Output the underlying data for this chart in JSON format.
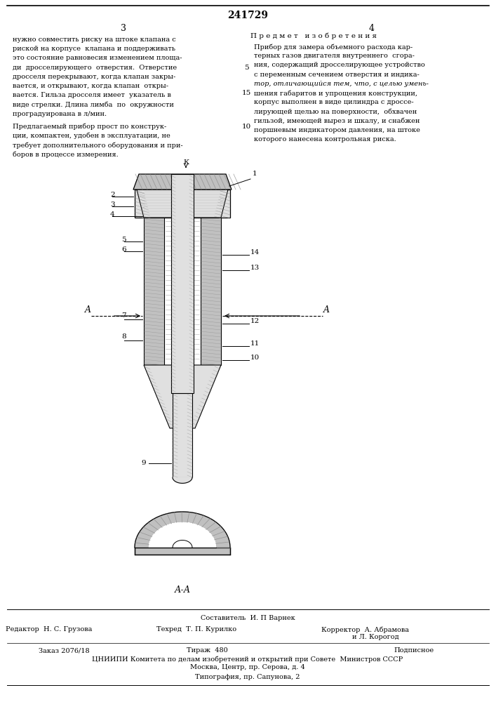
{
  "page_number": "241729",
  "col_left": "3",
  "col_right": "4",
  "bg_color": "#ffffff",
  "text_color": "#000000",
  "left_col_text": [
    "нужно совместить риску на штоке клапана с",
    "риской на корпусе  клапана и поддерживать",
    "это состояние равновесия изменением площа-",
    "ди  дросселирующего  отверстия.  Отверстие",
    "дросселя перекрывают, когда клапан закры-",
    "вается, и открывают, когда клапан  откры-",
    "вается. Гильза дросселя имеет  указатель в",
    "виде стрелки. Длина лимба  по  окружности",
    "проградуирована в л/мин."
  ],
  "left_col_text2": [
    "Предлагаемый прибор прост по конструк-",
    "ции, компактен, удобен в эксплуатации, не",
    "требует дополнительного оборудования и при-",
    "боров в процессе измерения."
  ],
  "right_col_title": "П р е д м е т   и з о б р е т е н и я",
  "right_col_text": [
    "Прибор для замера объемного расхода кар-",
    "терных газов двигателя внутреннего  сгора-",
    "ния, содержащий дросселирующее устройство",
    "с переменным сечением отверстия и индика-",
    "тор, отличающийся тем, что, с целью умень-",
    "шения габаритов и упрощения конструкции,",
    "корпус выполнен в виде цилиндра с дроссе-",
    "лирующей щелью на поверхности,  обхвачен",
    "гильзой, имеющей вырез и шкалу, и снабжен",
    "поршневым индикатором давления, на штоке",
    "которого нанесена контрольная риска."
  ],
  "bottom_section": {
    "compiler": "Составитель  И. П Варнек",
    "editor_label": "Редактор",
    "editor_name": "Н. С. Грузова",
    "tech_label": "Техред",
    "tech_name": "Т. П. Курилко",
    "corrector_label": "Корректор",
    "corrector_name": "А. Абрамова",
    "corrector_name2": "и Л. Корогод",
    "order_info": "Заказ 2076/18",
    "circulation": "Тираж  480",
    "subscription": "Подписное",
    "org_line1": "ЦНИИПИ Комитета по делам изобретений и открытий при Совете  Министров СССР",
    "org_line2": "Москва, Центр, пр. Серова, д. 4",
    "print_line": "Типография, пр. Сапунова, 2"
  }
}
